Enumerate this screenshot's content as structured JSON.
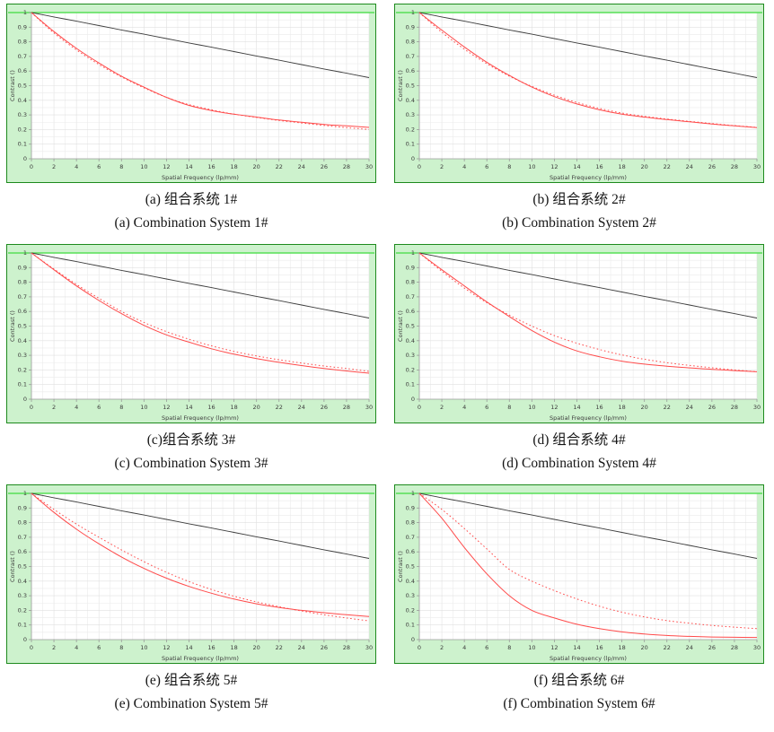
{
  "page": {
    "background": "#ffffff"
  },
  "colors": {
    "panel_background": "#cdf2cd",
    "panel_border": "#1d8a1d",
    "top_highlight_line": "#57df57",
    "plot_background": "#ffffff",
    "grid_minor": "#ebebeb",
    "grid_major": "#e0e0e0",
    "axis_line": "#9a9a9a",
    "tick_text": "#3c3c3c",
    "black_series": "#3d3d3d",
    "red_series": "#ff4a4a"
  },
  "chart_data": [
    {
      "type": "line",
      "panel": "a",
      "caption_zh": "(a) 组合系统  1#",
      "caption_en": "(a) Combination System 1#",
      "xlabel": "Spatial Frequency (lp/mm)",
      "ylabel": "Contrast ()",
      "xlim": [
        0,
        30
      ],
      "ylim": [
        0,
        1
      ],
      "xtick_step": 2,
      "ytick_step": 0.1,
      "grid": true,
      "legend": "none",
      "x": [
        0,
        2,
        4,
        6,
        8,
        10,
        12,
        14,
        16,
        18,
        20,
        22,
        24,
        26,
        28,
        30
      ],
      "series": [
        {
          "name": "limit_black_solid",
          "style": "solid",
          "color": "#3d3d3d",
          "values": [
            1,
            0.97,
            0.941,
            0.911,
            0.881,
            0.852,
            0.822,
            0.792,
            0.763,
            0.733,
            0.703,
            0.674,
            0.644,
            0.614,
            0.585,
            0.555
          ]
        },
        {
          "name": "red_solid",
          "style": "solid",
          "color": "#ff4a4a",
          "values": [
            1,
            0.87,
            0.755,
            0.655,
            0.565,
            0.49,
            0.42,
            0.365,
            0.33,
            0.305,
            0.285,
            0.265,
            0.25,
            0.235,
            0.225,
            0.215
          ]
        },
        {
          "name": "red_dotted",
          "style": "dotted",
          "color": "#ff4a4a",
          "values": [
            1,
            0.86,
            0.745,
            0.645,
            0.56,
            0.485,
            0.42,
            0.37,
            0.335,
            0.305,
            0.283,
            0.262,
            0.245,
            0.228,
            0.213,
            0.2
          ]
        }
      ]
    },
    {
      "type": "line",
      "panel": "b",
      "caption_zh": "(b) 组合系统 2#",
      "caption_en": "(b) Combination System 2#",
      "xlabel": "Spatial Frequency (lp/mm)",
      "ylabel": "Contrast ()",
      "xlim": [
        0,
        30
      ],
      "ylim": [
        0,
        1
      ],
      "xtick_step": 2,
      "ytick_step": 0.1,
      "grid": true,
      "legend": "none",
      "x": [
        0,
        2,
        4,
        6,
        8,
        10,
        12,
        14,
        16,
        18,
        20,
        22,
        24,
        26,
        28,
        30
      ],
      "series": [
        {
          "name": "limit_black_solid",
          "style": "solid",
          "color": "#3d3d3d",
          "values": [
            1,
            0.97,
            0.941,
            0.911,
            0.881,
            0.852,
            0.822,
            0.792,
            0.763,
            0.733,
            0.703,
            0.674,
            0.644,
            0.614,
            0.585,
            0.555
          ]
        },
        {
          "name": "red_solid",
          "style": "solid",
          "color": "#ff4a4a",
          "values": [
            1,
            0.88,
            0.765,
            0.66,
            0.57,
            0.49,
            0.425,
            0.375,
            0.335,
            0.305,
            0.285,
            0.268,
            0.253,
            0.238,
            0.225,
            0.213
          ]
        },
        {
          "name": "red_dotted",
          "style": "dotted",
          "color": "#ff4a4a",
          "values": [
            1,
            0.865,
            0.75,
            0.65,
            0.565,
            0.495,
            0.435,
            0.385,
            0.345,
            0.313,
            0.29,
            0.272,
            0.256,
            0.241,
            0.227,
            0.215
          ]
        }
      ]
    },
    {
      "type": "line",
      "panel": "c",
      "caption_zh": "(c)组合系统 3#",
      "caption_en": "(c) Combination System 3#",
      "xlabel": "Spatial Frequency (lp/mm)",
      "ylabel": "Contrast ()",
      "xlim": [
        0,
        30
      ],
      "ylim": [
        0,
        1
      ],
      "xtick_step": 2,
      "ytick_step": 0.1,
      "grid": true,
      "legend": "none",
      "x": [
        0,
        2,
        4,
        6,
        8,
        10,
        12,
        14,
        16,
        18,
        20,
        22,
        24,
        26,
        28,
        30
      ],
      "series": [
        {
          "name": "limit_black_solid",
          "style": "solid",
          "color": "#3d3d3d",
          "values": [
            1,
            0.97,
            0.941,
            0.911,
            0.881,
            0.852,
            0.822,
            0.792,
            0.763,
            0.733,
            0.703,
            0.674,
            0.644,
            0.614,
            0.585,
            0.555
          ]
        },
        {
          "name": "red_solid",
          "style": "solid",
          "color": "#ff4a4a",
          "values": [
            1,
            0.885,
            0.775,
            0.675,
            0.585,
            0.505,
            0.44,
            0.39,
            0.345,
            0.308,
            0.278,
            0.252,
            0.23,
            0.21,
            0.193,
            0.178
          ]
        },
        {
          "name": "red_dotted",
          "style": "dotted",
          "color": "#ff4a4a",
          "values": [
            1,
            0.89,
            0.785,
            0.69,
            0.6,
            0.525,
            0.462,
            0.41,
            0.365,
            0.327,
            0.296,
            0.27,
            0.247,
            0.227,
            0.21,
            0.19
          ]
        }
      ]
    },
    {
      "type": "line",
      "panel": "d",
      "caption_zh": "(d) 组合系统 4#",
      "caption_en": "(d) Combination System 4#",
      "xlabel": "Spatial Frequency (lp/mm)",
      "ylabel": "Contrast ()",
      "xlim": [
        0,
        30
      ],
      "ylim": [
        0,
        1
      ],
      "xtick_step": 2,
      "ytick_step": 0.1,
      "grid": true,
      "legend": "none",
      "x": [
        0,
        2,
        4,
        6,
        8,
        10,
        12,
        14,
        16,
        18,
        20,
        22,
        24,
        26,
        28,
        30
      ],
      "series": [
        {
          "name": "limit_black_solid",
          "style": "solid",
          "color": "#3d3d3d",
          "values": [
            1,
            0.97,
            0.941,
            0.911,
            0.881,
            0.852,
            0.822,
            0.792,
            0.763,
            0.733,
            0.703,
            0.674,
            0.644,
            0.614,
            0.585,
            0.555
          ]
        },
        {
          "name": "red_solid",
          "style": "solid",
          "color": "#ff4a4a",
          "values": [
            1,
            0.885,
            0.775,
            0.665,
            0.565,
            0.47,
            0.39,
            0.33,
            0.29,
            0.26,
            0.24,
            0.226,
            0.214,
            0.204,
            0.196,
            0.188
          ]
        },
        {
          "name": "red_dotted",
          "style": "dotted",
          "color": "#ff4a4a",
          "values": [
            1,
            0.875,
            0.76,
            0.66,
            0.575,
            0.5,
            0.435,
            0.383,
            0.34,
            0.303,
            0.273,
            0.25,
            0.231,
            0.215,
            0.2,
            0.188
          ]
        }
      ]
    },
    {
      "type": "line",
      "panel": "e",
      "caption_zh": "(e) 组合系统 5#",
      "caption_en": "(e) Combination System 5#",
      "xlabel": "Spatial Frequency (lp/mm)",
      "ylabel": "Contrast ()",
      "xlim": [
        0,
        30
      ],
      "ylim": [
        0,
        1
      ],
      "xtick_step": 2,
      "ytick_step": 0.1,
      "grid": true,
      "legend": "none",
      "x": [
        0,
        2,
        4,
        6,
        8,
        10,
        12,
        14,
        16,
        18,
        20,
        22,
        24,
        26,
        28,
        30
      ],
      "series": [
        {
          "name": "limit_black_solid",
          "style": "solid",
          "color": "#3d3d3d",
          "values": [
            1,
            0.97,
            0.941,
            0.911,
            0.881,
            0.852,
            0.822,
            0.792,
            0.763,
            0.733,
            0.703,
            0.674,
            0.644,
            0.614,
            0.585,
            0.555
          ]
        },
        {
          "name": "red_solid",
          "style": "solid",
          "color": "#ff4a4a",
          "values": [
            1,
            0.87,
            0.755,
            0.655,
            0.565,
            0.487,
            0.42,
            0.364,
            0.317,
            0.277,
            0.245,
            0.22,
            0.2,
            0.184,
            0.17,
            0.158
          ]
        },
        {
          "name": "red_dotted",
          "style": "dotted",
          "color": "#ff4a4a",
          "values": [
            1,
            0.89,
            0.79,
            0.7,
            0.613,
            0.533,
            0.46,
            0.397,
            0.343,
            0.297,
            0.258,
            0.225,
            0.196,
            0.17,
            0.148,
            0.128
          ]
        }
      ]
    },
    {
      "type": "line",
      "panel": "f",
      "caption_zh": "(f) 组合系统 6#",
      "caption_en": "(f) Combination System 6#",
      "xlabel": "Spatial Frequency (lp/mm)",
      "ylabel": "Contrast ()",
      "xlim": [
        0,
        30
      ],
      "ylim": [
        0,
        1
      ],
      "xtick_step": 2,
      "ytick_step": 0.1,
      "grid": true,
      "legend": "none",
      "x": [
        0,
        2,
        4,
        6,
        8,
        10,
        12,
        14,
        16,
        18,
        20,
        22,
        24,
        26,
        28,
        30
      ],
      "series": [
        {
          "name": "limit_black_solid",
          "style": "solid",
          "color": "#3d3d3d",
          "values": [
            1,
            0.97,
            0.941,
            0.911,
            0.881,
            0.852,
            0.822,
            0.792,
            0.763,
            0.733,
            0.703,
            0.674,
            0.644,
            0.614,
            0.585,
            0.555
          ]
        },
        {
          "name": "red_solid",
          "style": "solid",
          "color": "#ff4a4a",
          "values": [
            1,
            0.83,
            0.63,
            0.45,
            0.3,
            0.2,
            0.148,
            0.105,
            0.075,
            0.053,
            0.038,
            0.028,
            0.022,
            0.018,
            0.016,
            0.015
          ]
        },
        {
          "name": "red_dotted",
          "style": "dotted",
          "color": "#ff4a4a",
          "values": [
            1,
            0.89,
            0.76,
            0.62,
            0.48,
            0.4,
            0.335,
            0.278,
            0.228,
            0.188,
            0.155,
            0.13,
            0.112,
            0.097,
            0.085,
            0.075
          ]
        }
      ]
    }
  ]
}
